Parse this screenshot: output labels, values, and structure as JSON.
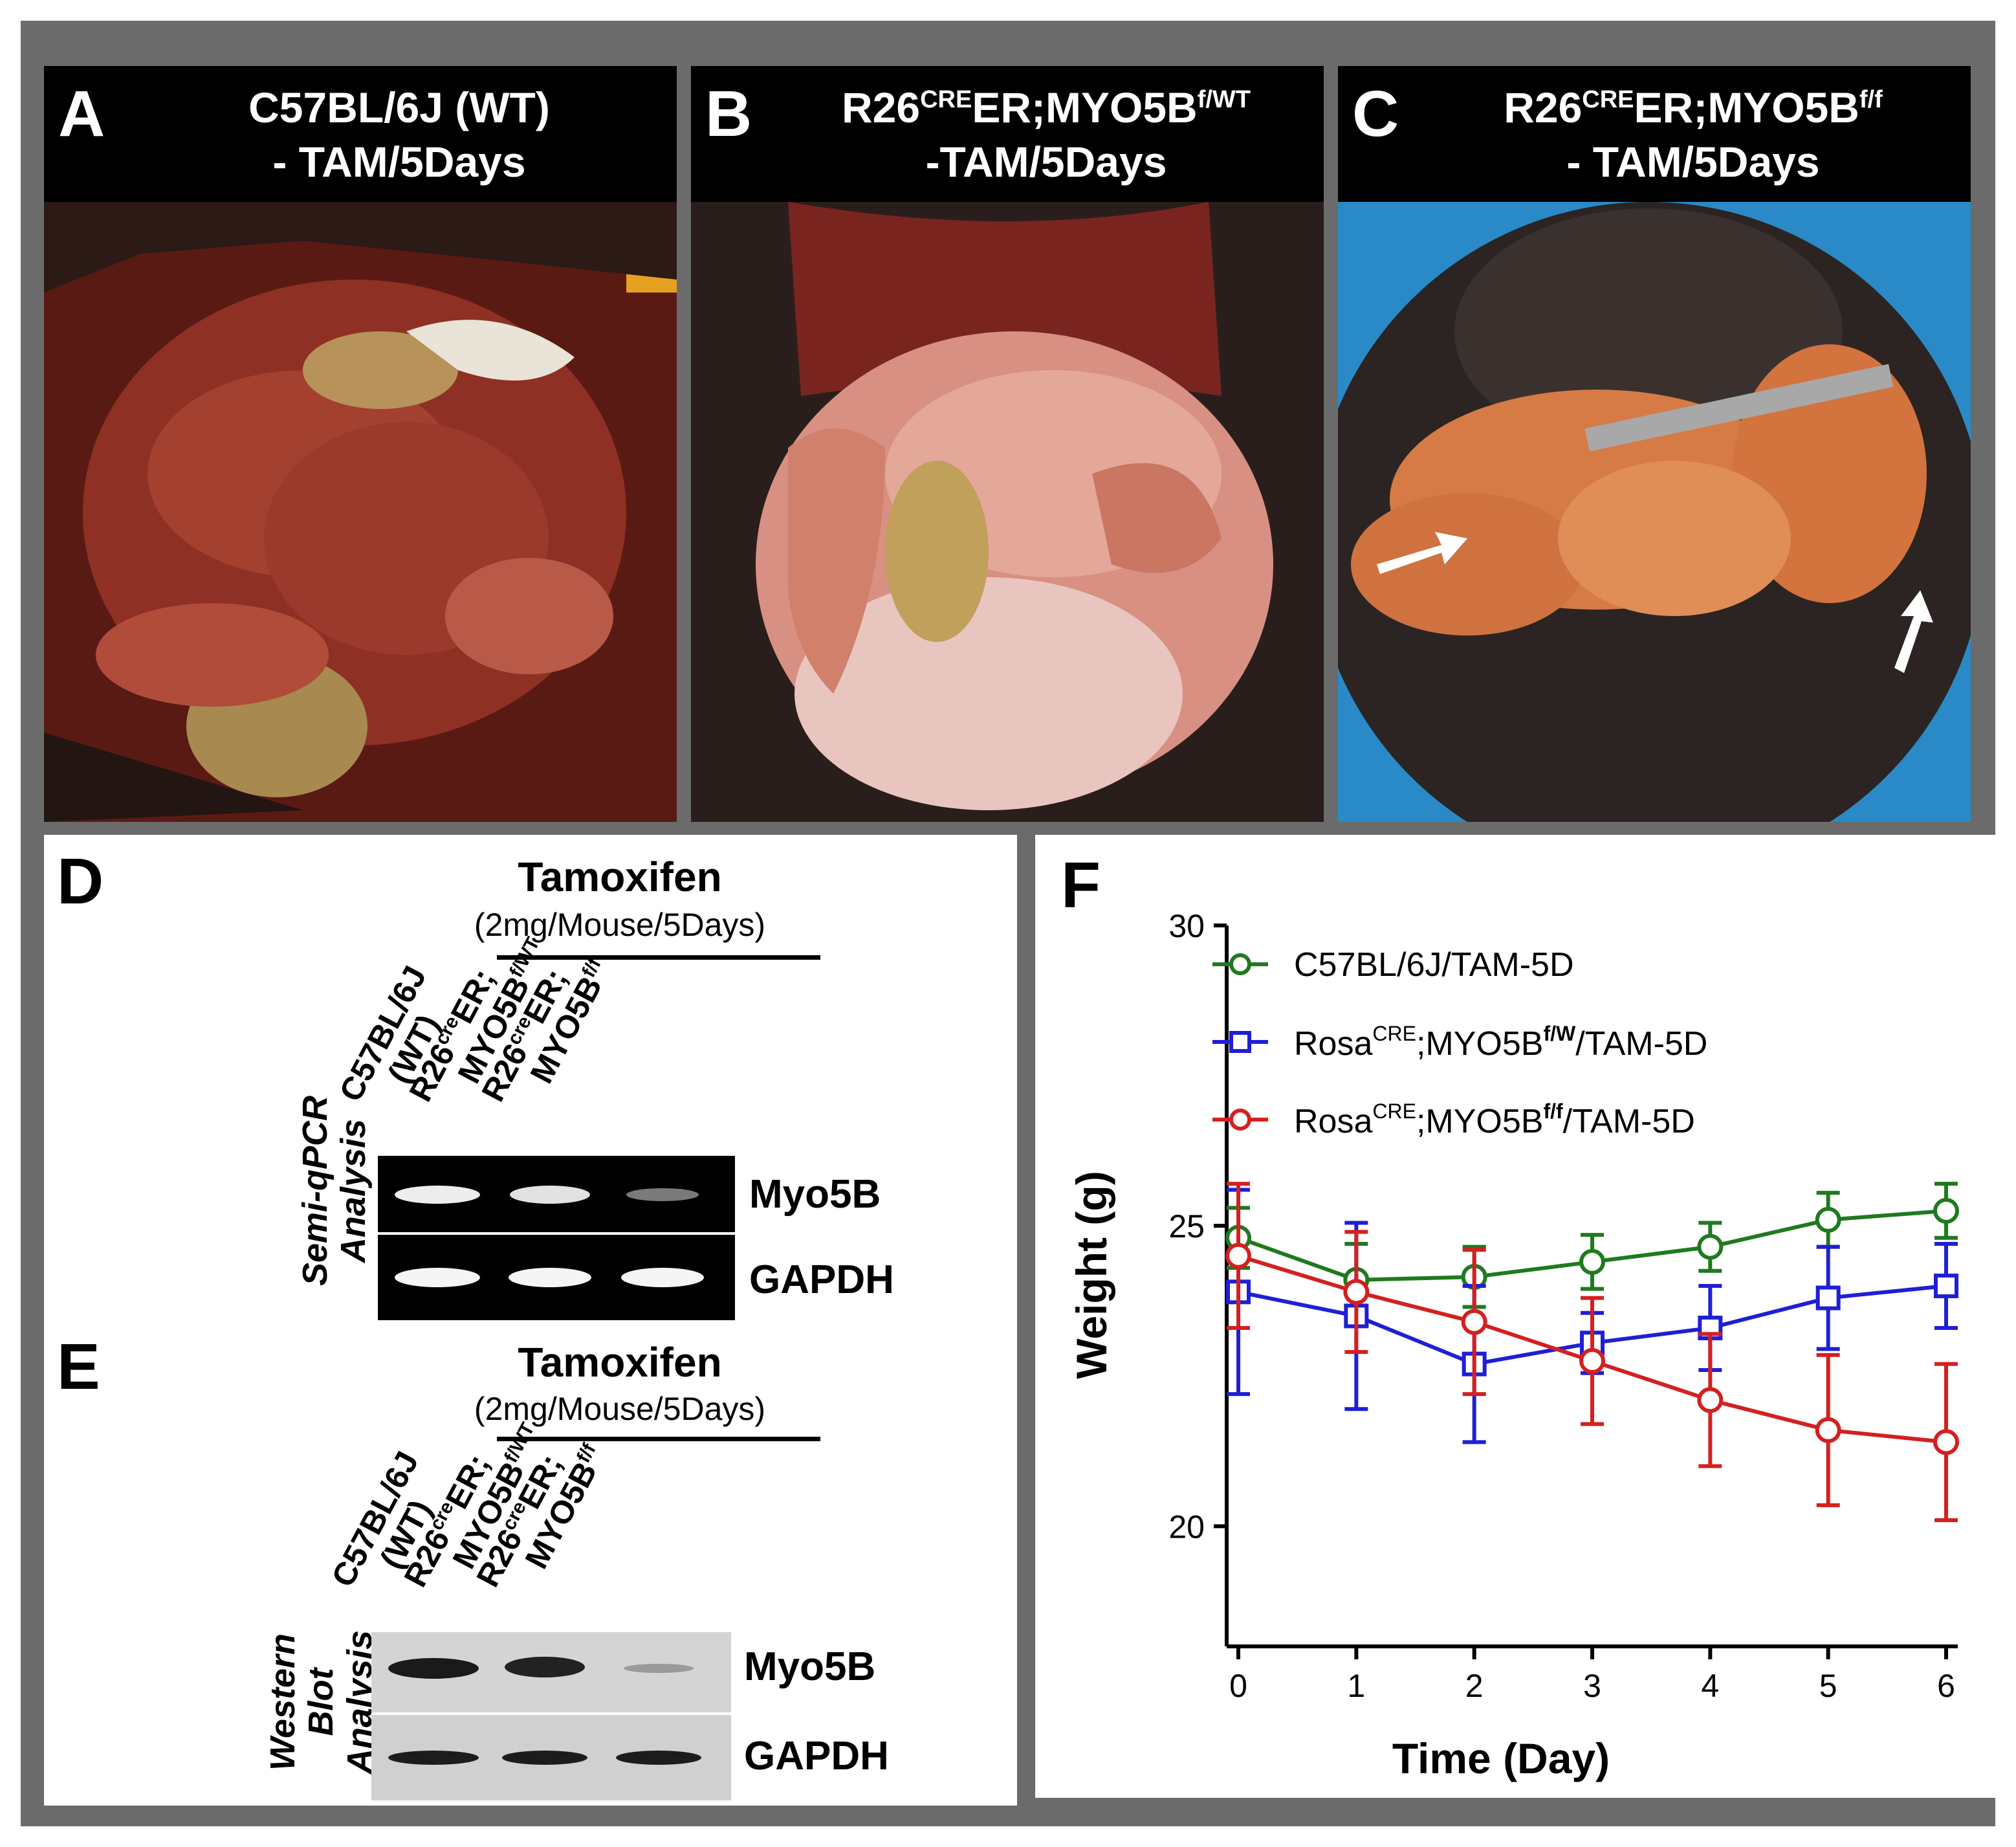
{
  "panels_top": [
    {
      "letter": "A",
      "title_line1": "C57BL/6J (WT)",
      "title_line2": "- TAM/5Days"
    },
    {
      "letter": "B",
      "title_line1_pre": "R26",
      "title_line1_sup": "CRE",
      "title_line1_mid": "ER;MYO5B",
      "title_line1_sup2": "f/WT",
      "title_line2": "-TAM/5Days"
    },
    {
      "letter": "C",
      "title_line1_pre": "R26",
      "title_line1_sup": "CRE",
      "title_line1_mid": "ER;MYO5B",
      "title_line1_sup2": "f/f",
      "title_line2": "- TAM/5Days"
    }
  ],
  "panel_d": {
    "letter": "D",
    "title": "Tamoxifen",
    "subtitle": "(2mg/Mouse/5Days)",
    "side_label_1": "Semi-qPCR",
    "side_label_2": "Analysis",
    "lanes": [
      {
        "line1": "C57BL/6J",
        "line2": "(WT)"
      },
      {
        "line1_pre": "R26",
        "line1_sup": "cre",
        "line1_post": "ER;",
        "line2_pre": "MYO5B",
        "line2_sup": "f/WT"
      },
      {
        "line1_pre": "R26",
        "line1_sup": "cre",
        "line1_post": "ER;",
        "line2_pre": "MYO5B",
        "line2_sup": "f/f"
      }
    ],
    "bands": [
      "Myo5B",
      "GAPDH"
    ]
  },
  "panel_e": {
    "letter": "E",
    "title": "Tamoxifen",
    "subtitle": "(2mg/Mouse/5Days)",
    "side_label_1": "Western",
    "side_label_2": "Blot",
    "side_label_3": "Analysis",
    "lanes": [
      {
        "line1": "C57BL/6J",
        "line2": "(WT)"
      },
      {
        "line1_pre": "R26",
        "line1_sup": "cre",
        "line1_post": "ER;",
        "line2_pre": "MYO5B",
        "line2_sup": "f/WT"
      },
      {
        "line1_pre": "R26",
        "line1_sup": "cre",
        "line1_post": "ER;",
        "line2_pre": "MYO5B",
        "line2_sup": "f/f"
      }
    ],
    "bands": [
      "Myo5B",
      "GAPDH"
    ]
  },
  "chart_data": {
    "type": "line",
    "panel_letter": "F",
    "xlabel": "Time (Day)",
    "ylabel": "Weight (g)",
    "x": [
      0,
      1,
      2,
      3,
      4,
      5,
      6
    ],
    "xlim": [
      0,
      6
    ],
    "ylim": [
      18,
      30
    ],
    "yticks": [
      20,
      25,
      30
    ],
    "xticks": [
      0,
      1,
      2,
      3,
      4,
      5,
      6
    ],
    "series": [
      {
        "name": "C57BL/6J/TAM-5D",
        "legend_pre": "C57BL/6J/TAM-5D",
        "color": "#1f7a1f",
        "marker": "circle",
        "values": [
          24.8,
          24.1,
          24.15,
          24.4,
          24.65,
          25.1,
          25.25
        ],
        "err": [
          0.5,
          0.6,
          0.5,
          0.45,
          0.4,
          0.45,
          0.45
        ]
      },
      {
        "name": "RosaCRE;MYO5Bf/W/TAM-5D",
        "legend_pre": "Rosa",
        "legend_sup": "CRE",
        "legend_mid": ";MYO5B",
        "legend_sup2": "f/W",
        "legend_post": "/TAM-5D",
        "color": "#1f1fd6",
        "marker": "square",
        "values": [
          23.9,
          23.5,
          22.7,
          23.05,
          23.3,
          23.8,
          24.0
        ],
        "err": [
          1.7,
          1.55,
          1.3,
          0.5,
          0.7,
          0.85,
          0.7
        ]
      },
      {
        "name": "RosaCRE;MYO5Bf/f/TAM-5D",
        "legend_pre": "Rosa",
        "legend_sup": "CRE",
        "legend_mid": ";MYO5B",
        "legend_sup2": "f/f",
        "legend_post": "/TAM-5D",
        "color": "#d42020",
        "marker": "circle",
        "values": [
          24.5,
          23.9,
          23.4,
          22.75,
          22.1,
          21.6,
          21.4
        ],
        "err": [
          1.2,
          1.0,
          1.2,
          1.05,
          1.1,
          1.25,
          1.3
        ]
      }
    ]
  }
}
